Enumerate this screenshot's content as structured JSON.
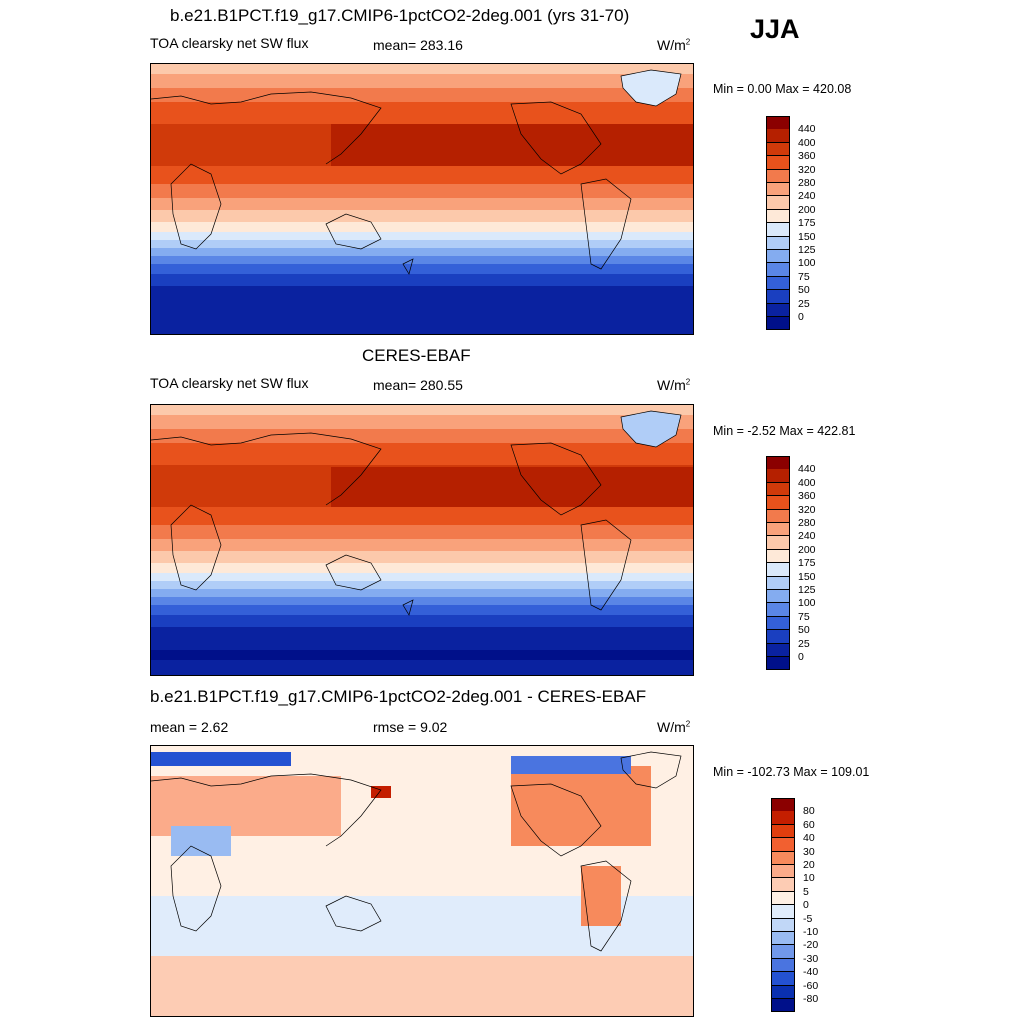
{
  "season": "JJA",
  "panels": [
    {
      "id": "model",
      "title": "b.e21.B1PCT.f19_g17.CMIP6-1pctCO2-2deg.001 (yrs 31-70)",
      "left_label": "TOA clearsky net SW flux",
      "center_label": "mean= 283.16",
      "units": "W/m",
      "units_sup": "2",
      "minmax": "Min =   0.00 Max = 420.08",
      "colorbar": {
        "colors": [
          "#8b0000",
          "#b52000",
          "#d03a0a",
          "#e8521c",
          "#f27a4c",
          "#f9a27b",
          "#fcc9ab",
          "#fee9d8",
          "#dae9fb",
          "#b0cdf7",
          "#84acf0",
          "#5a86e6",
          "#3460d8",
          "#1a3fc0",
          "#0a22a0",
          "#00108a"
        ],
        "labels": [
          "440",
          "400",
          "360",
          "320",
          "280",
          "240",
          "200",
          "175",
          "150",
          "125",
          "100",
          "75",
          "50",
          "25",
          "0"
        ]
      }
    },
    {
      "id": "obs",
      "title": "CERES-EBAF",
      "left_label": "TOA clearsky net SW flux",
      "center_label": "mean= 280.55",
      "units": "W/m",
      "units_sup": "2",
      "minmax": "Min =  -2.52 Max = 422.81",
      "colorbar": {
        "colors": [
          "#8b0000",
          "#b52000",
          "#d03a0a",
          "#e8521c",
          "#f27a4c",
          "#f9a27b",
          "#fcc9ab",
          "#fee9d8",
          "#dae9fb",
          "#b0cdf7",
          "#84acf0",
          "#5a86e6",
          "#3460d8",
          "#1a3fc0",
          "#0a22a0",
          "#00108a"
        ],
        "labels": [
          "440",
          "400",
          "360",
          "320",
          "280",
          "240",
          "200",
          "175",
          "150",
          "125",
          "100",
          "75",
          "50",
          "25",
          "0"
        ]
      }
    },
    {
      "id": "diff",
      "title": "b.e21.B1PCT.f19_g17.CMIP6-1pctCO2-2deg.001 - CERES-EBAF",
      "left_label": "mean =   2.62",
      "center_label": "rmse =   9.02",
      "units": "W/m",
      "units_sup": "2",
      "minmax": "Min = -102.73 Max = 109.01",
      "colorbar": {
        "colors": [
          "#8b0000",
          "#c41e00",
          "#e03e0e",
          "#f26030",
          "#f78a5c",
          "#fbab8a",
          "#fdccb4",
          "#fff0e4",
          "#e0ecfb",
          "#c1d7f7",
          "#99bbf2",
          "#7198ea",
          "#4a74e0",
          "#2452d2",
          "#0a30b0",
          "#00108a"
        ],
        "labels": [
          "80",
          "60",
          "40",
          "30",
          "20",
          "10",
          "5",
          "0",
          "-5",
          "-10",
          "-20",
          "-30",
          "-40",
          "-60",
          "-80"
        ]
      }
    }
  ]
}
